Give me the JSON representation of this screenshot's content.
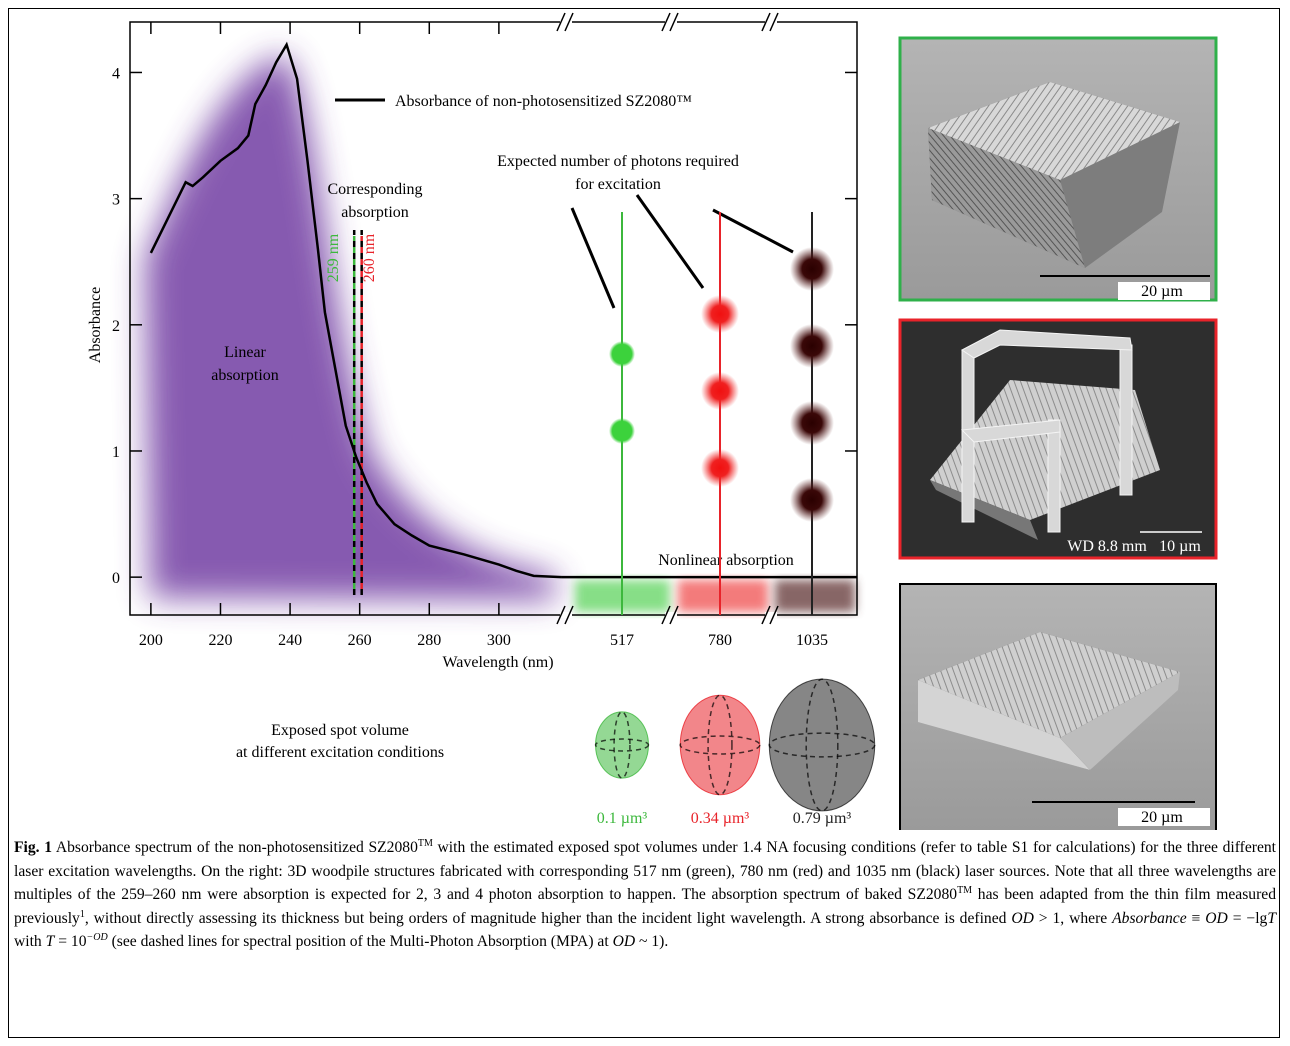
{
  "chart_data": {
    "type": "line",
    "x_label": "Wavelength (nm)",
    "y_label": "Absorbance",
    "xlim": [
      194,
      319
    ],
    "xticks": [
      200,
      220,
      240,
      260,
      280,
      300
    ],
    "ylim": [
      -0.3,
      4.4
    ],
    "yticks": [
      0,
      1,
      2,
      3,
      4
    ],
    "x": [
      200,
      205,
      210,
      212,
      215,
      220,
      225,
      228,
      230,
      233,
      236,
      239,
      242,
      245,
      248,
      250,
      253,
      256,
      259,
      262,
      265,
      270,
      275,
      280,
      290,
      300,
      305,
      310,
      318
    ],
    "series": [
      {
        "name": "Absorbance of non-photosensitized SZ2080™",
        "color": "#000000",
        "values": [
          2.57,
          2.85,
          3.13,
          3.1,
          3.17,
          3.3,
          3.4,
          3.5,
          3.75,
          3.9,
          4.08,
          4.22,
          3.95,
          3.3,
          2.6,
          2.1,
          1.65,
          1.2,
          0.95,
          0.75,
          0.58,
          0.42,
          0.33,
          0.25,
          0.18,
          0.1,
          0.05,
          0.01,
          0
        ]
      }
    ],
    "dashed_lines": [
      {
        "label": "259 nm",
        "value": 259,
        "color": "#3cb83c"
      },
      {
        "label": "260 nm",
        "value": 260,
        "color": "#e8232a"
      }
    ],
    "excitation": [
      {
        "wavelength": 517,
        "color": "#3cb83c",
        "photons": 2,
        "volume": 0.1,
        "volume_label": "0.1 µm³"
      },
      {
        "wavelength": 780,
        "color": "#e8232a",
        "photons": 3,
        "volume": 0.34,
        "volume_label": "0.34 µm³"
      },
      {
        "wavelength": 1035,
        "color": "#222222",
        "photons": 4,
        "volume": 0.79,
        "volume_label": "0.79 µm³"
      }
    ],
    "annotations": {
      "linear": [
        "Linear",
        "absorption"
      ],
      "nonlinear": "Nonlinear absorption",
      "corresponding": [
        "Corresponding",
        "absorption"
      ],
      "photons": [
        "Expected number of photons required",
        "for excitation"
      ],
      "spot_volume": [
        "Exposed spot volume",
        "at different excitation conditions"
      ]
    }
  },
  "images": [
    {
      "scale_label": "20 µm"
    },
    {
      "wd_label": "WD 8.8 mm",
      "scale_label": "10 µm"
    },
    {
      "scale_label": "20 µm"
    }
  ],
  "caption": {
    "parts": [
      "Fig. 1",
      " Absorbance spectrum of the non-photosensitized SZ2080",
      "TM",
      " with the estimated exposed spot volumes under 1.4 NA focusing conditions (refer to table S1 for calculations) for the three different laser excitation wavelengths. On the right: 3D woodpile structures fabricated with corresponding 517 nm (green), 780 nm (red) and 1035 nm (black) laser sources. Note that all three wavelengths are multiples of the 259–260 nm were absorption is expected for 2, 3 and 4 photon absorption to happen. The absorption spectrum of baked SZ2080",
      "TM",
      " has been adapted from the thin film measured previously",
      "1",
      ", without directly assessing its thickness but being orders of magnitude higher than the incident light wavelength. A strong absorbance is defined ",
      "OD",
      " > 1, where ",
      "Absorbance",
      " ≡ ",
      "OD",
      " = −lg",
      "T",
      " with ",
      "T",
      " = 10",
      "−OD",
      " (see dashed lines for spectral position of the Multi-Photon Absorption (MPA) at ",
      "OD",
      " ~ 1)."
    ]
  }
}
